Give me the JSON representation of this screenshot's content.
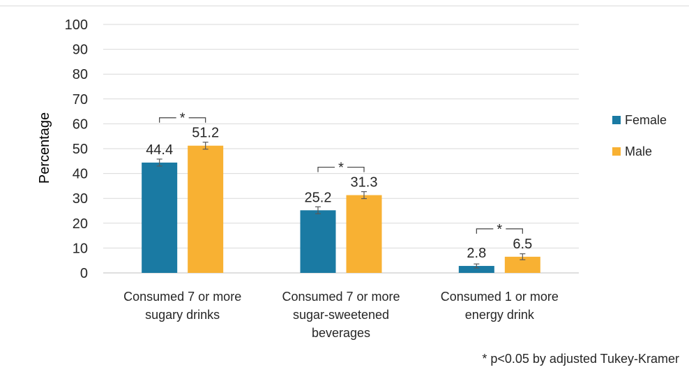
{
  "chart_data": {
    "type": "bar",
    "categories": [
      [
        "Consumed 7 or more",
        "sugary drinks"
      ],
      [
        "Consumed 7 or more",
        "sugar-sweetened",
        "beverages"
      ],
      [
        "Consumed 1 or more",
        "energy drink"
      ]
    ],
    "series": [
      {
        "name": "Female",
        "color": "#1a7aa3",
        "values": [
          44.4,
          25.2,
          2.8
        ],
        "error": [
          1.4,
          1.4,
          0.8
        ]
      },
      {
        "name": "Male",
        "color": "#f8b133",
        "values": [
          51.2,
          31.3,
          6.5
        ],
        "error": [
          1.4,
          1.4,
          1.2
        ]
      }
    ],
    "ylabel": "Percentage",
    "xlabel": "",
    "ylim": [
      0,
      100
    ],
    "yticks": [
      0,
      10,
      20,
      30,
      40,
      50,
      60,
      70,
      80,
      90,
      100
    ],
    "grid": true,
    "legend_position": "right",
    "significance_marker": "*",
    "significant_pairs": [
      0,
      1,
      2
    ],
    "footnote": "* p<0.05 by adjusted Tukey-Kramer"
  }
}
